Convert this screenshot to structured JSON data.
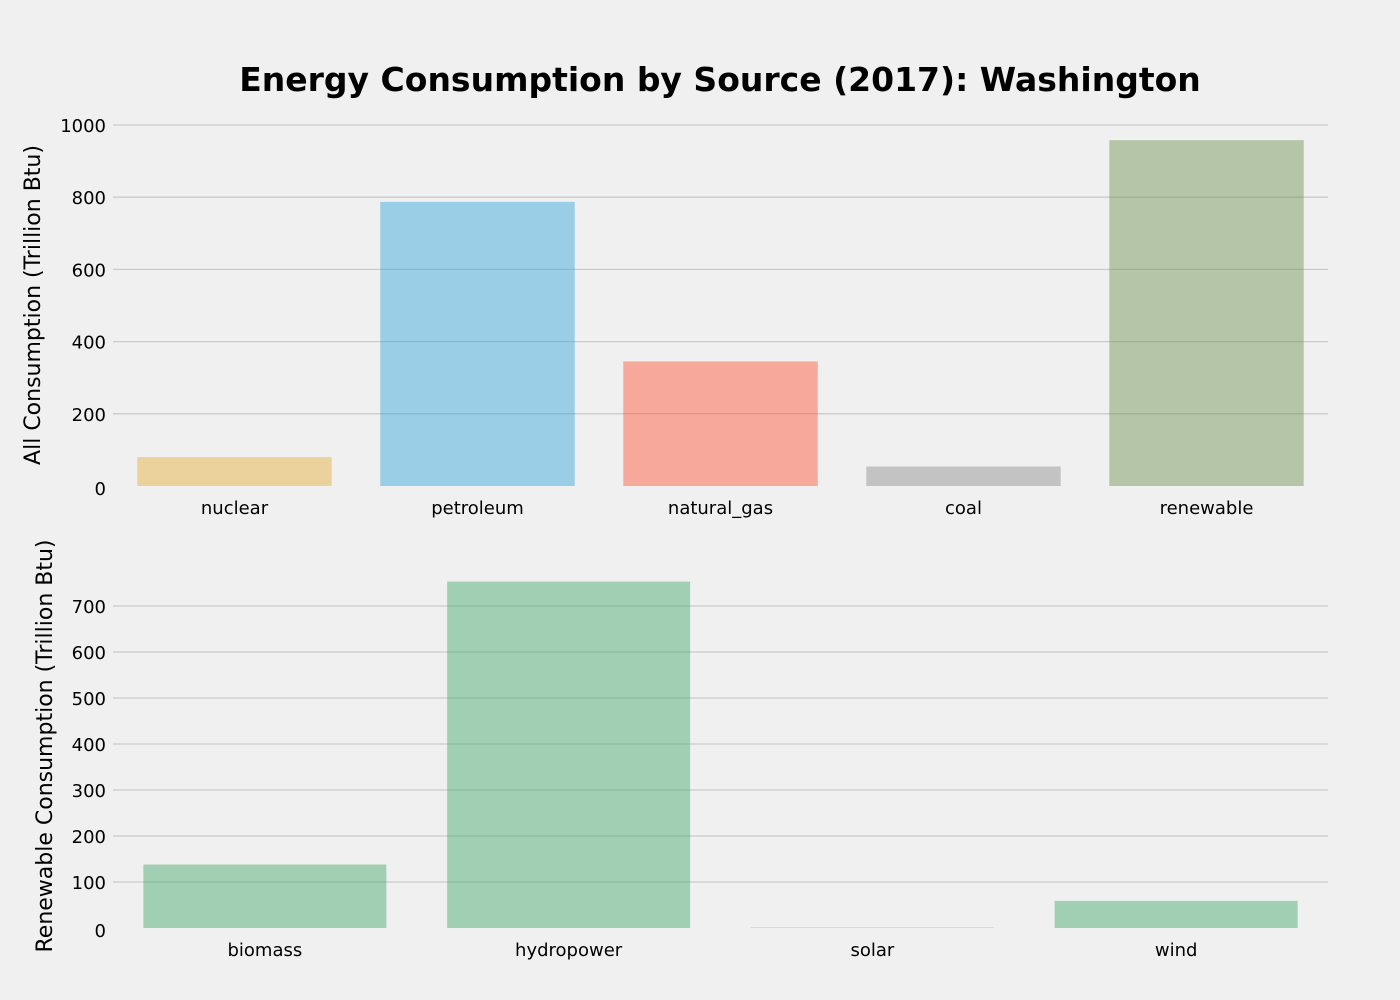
{
  "title": "Energy Consumption by Source (2017): Washington",
  "chart_data": [
    {
      "type": "bar",
      "ylabel": "All Consumption (Trillion Btu)",
      "xlabel": "",
      "categories": [
        "nuclear",
        "petroleum",
        "natural_gas",
        "coal",
        "renewable"
      ],
      "values": [
        80,
        787,
        345,
        54,
        958
      ],
      "colors": [
        "#e5ae38",
        "#30a2da",
        "#fc4f30",
        "#8b8b8b",
        "#6d904f"
      ],
      "bar_color_names": [
        "gold",
        "blue",
        "red",
        "gray",
        "green"
      ],
      "ylim": [
        0,
        1000
      ],
      "yticks": [
        0,
        200,
        400,
        600,
        800,
        1000
      ],
      "grid": true
    },
    {
      "type": "bar",
      "ylabel": "Renewable Consumption (Trillion Btu)",
      "xlabel": "",
      "categories": [
        "biomass",
        "hydropower",
        "solar",
        "wind"
      ],
      "values": [
        138,
        753,
        1,
        59
      ],
      "colors": [
        "#3fa66a",
        "#3fa66a",
        "#3fa66a",
        "#3fa66a"
      ],
      "ylim": [
        0,
        780
      ],
      "yticks": [
        0,
        100,
        200,
        300,
        400,
        500,
        600,
        700
      ],
      "grid": true
    }
  ]
}
